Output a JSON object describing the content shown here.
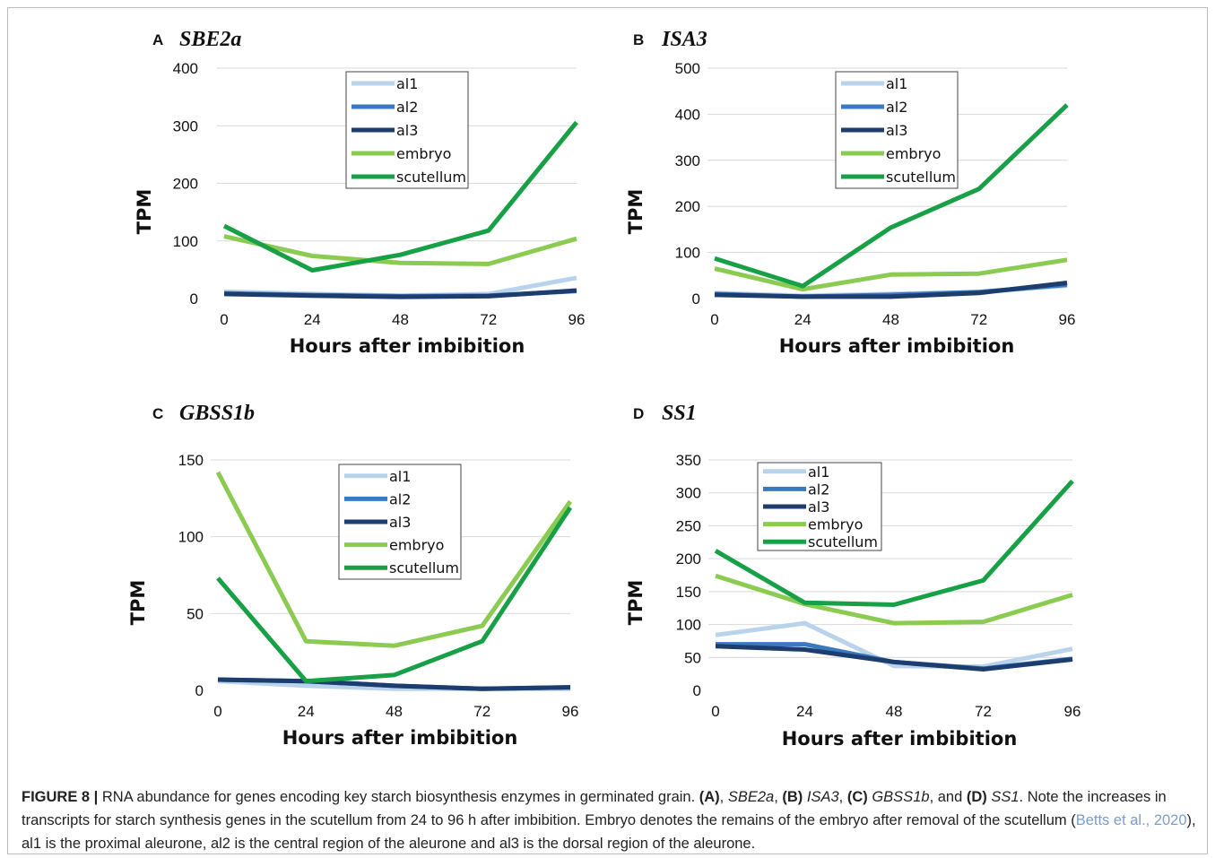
{
  "colors": {
    "al1": "#b9d3ec",
    "al2": "#3a78bf",
    "al3": "#1c3d6e",
    "embryo": "#8bcb52",
    "scutellum": "#17a046",
    "grid": "#d9d9d9"
  },
  "chart_data": [
    {
      "type": "line",
      "panel": "A",
      "title": "SBE2a",
      "xlabel": "Hours after imbibition",
      "ylabel": "TPM",
      "x": [
        0,
        24,
        48,
        72,
        96
      ],
      "yticks": [
        0,
        100,
        200,
        300,
        400
      ],
      "ylim": [
        0,
        400
      ],
      "grid": true,
      "legend": "top-center",
      "series": [
        {
          "name": "al1",
          "values": [
            12,
            8,
            5,
            8,
            36
          ]
        },
        {
          "name": "al2",
          "values": [
            9,
            6,
            4,
            5,
            13
          ]
        },
        {
          "name": "al3",
          "values": [
            8,
            5,
            3,
            4,
            14
          ]
        },
        {
          "name": "embryo",
          "values": [
            108,
            74,
            62,
            60,
            104
          ]
        },
        {
          "name": "scutellum",
          "values": [
            126,
            49,
            76,
            118,
            306
          ]
        }
      ]
    },
    {
      "type": "line",
      "panel": "B",
      "title": "ISA3",
      "xlabel": "Hours after imbibition",
      "ylabel": "TPM",
      "x": [
        0,
        24,
        48,
        72,
        96
      ],
      "yticks": [
        0,
        100,
        200,
        300,
        400,
        500
      ],
      "ylim": [
        0,
        500
      ],
      "grid": true,
      "legend": "top-center",
      "series": [
        {
          "name": "al1",
          "values": [
            12,
            6,
            10,
            14,
            28
          ]
        },
        {
          "name": "al2",
          "values": [
            10,
            4,
            8,
            14,
            30
          ]
        },
        {
          "name": "al3",
          "values": [
            8,
            4,
            4,
            12,
            34
          ]
        },
        {
          "name": "embryo",
          "values": [
            65,
            20,
            52,
            54,
            84
          ]
        },
        {
          "name": "scutellum",
          "values": [
            87,
            27,
            154,
            238,
            420
          ]
        }
      ]
    },
    {
      "type": "line",
      "panel": "C",
      "title": "GBSS1b",
      "xlabel": "Hours after imbibition",
      "ylabel": "TPM",
      "x": [
        0,
        24,
        48,
        72,
        96
      ],
      "yticks": [
        0,
        50,
        100,
        150
      ],
      "ylim": [
        0,
        150
      ],
      "grid": true,
      "legend": "top-center",
      "series": [
        {
          "name": "al1",
          "values": [
            6,
            3,
            1,
            1,
            1
          ]
        },
        {
          "name": "al2",
          "values": [
            7,
            6,
            3,
            1,
            2
          ]
        },
        {
          "name": "al3",
          "values": [
            7,
            6,
            3,
            1,
            2
          ]
        },
        {
          "name": "embryo",
          "values": [
            142,
            32,
            29,
            42,
            123
          ]
        },
        {
          "name": "scutellum",
          "values": [
            73,
            6,
            10,
            32,
            119
          ]
        }
      ]
    },
    {
      "type": "line",
      "panel": "D",
      "title": "SS1",
      "xlabel": "Hours after imbibition",
      "ylabel": "TPM",
      "x": [
        0,
        24,
        48,
        72,
        96
      ],
      "yticks": [
        0,
        50,
        100,
        150,
        200,
        250,
        300,
        350
      ],
      "ylim": [
        0,
        350
      ],
      "grid": true,
      "legend": "top-left",
      "series": [
        {
          "name": "al1",
          "values": [
            84,
            102,
            37,
            36,
            63
          ]
        },
        {
          "name": "al2",
          "values": [
            70,
            70,
            43,
            33,
            48
          ]
        },
        {
          "name": "al3",
          "values": [
            67,
            62,
            43,
            32,
            47
          ]
        },
        {
          "name": "embryo",
          "values": [
            174,
            131,
            102,
            104,
            145
          ]
        },
        {
          "name": "scutellum",
          "values": [
            212,
            133,
            130,
            167,
            318
          ]
        }
      ]
    }
  ],
  "caption": {
    "label": "FIGURE 8 |",
    "t1": " RNA abundance for genes encoding key starch biosynthesis enzymes in germinated grain. ",
    "pA": "(A)",
    "gA": "SBE2a",
    "pB": "(B)",
    "gB": "ISA3",
    "pC": "(C)",
    "gC": "GBSS1b",
    "and": ", and ",
    "pD": "(D)",
    "gD": "SS1",
    "t2": ". Note the increases in transcripts for starch synthesis genes in the scutellum from 24 to 96 h after imbibition. Embryo denotes the remains of the embryo after removal of the scutellum (",
    "cite": "Betts et al., 2020",
    "t3": "), al1 is the proximal aleurone, al2 is the central region of the aleurone and al3 is the dorsal region of the aleurone."
  }
}
